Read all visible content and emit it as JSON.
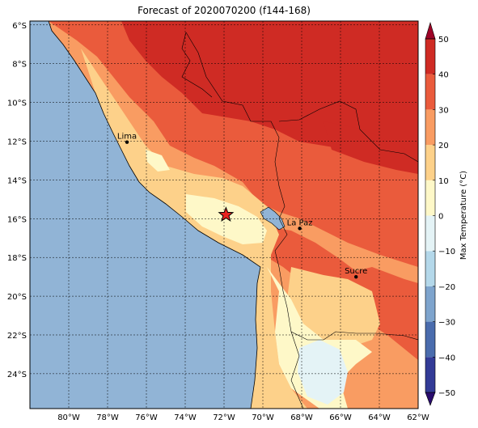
{
  "title": "Forecast of 2020070200 (f144-168)",
  "map": {
    "lon_ticks": [
      "80°W",
      "78°W",
      "76°W",
      "74°W",
      "72°W",
      "70°W",
      "68°W",
      "66°W",
      "64°W",
      "62°W"
    ],
    "lat_ticks": [
      "6°S",
      "8°S",
      "10°S",
      "12°S",
      "14°S",
      "16°S",
      "18°S",
      "20°S",
      "22°S",
      "24°S"
    ],
    "grid": true,
    "ocean_color": "#91b4d6",
    "cities": [
      {
        "name": "Lima",
        "lon": -77.0,
        "lat": -12.05
      },
      {
        "name": "La Paz",
        "lon": -68.1,
        "lat": -16.5
      },
      {
        "name": "Sucre",
        "lon": -65.2,
        "lat": -19.0
      }
    ],
    "marker": {
      "icon": "red-star-icon",
      "color": "#e8231f",
      "lon": -71.9,
      "lat": -15.8
    }
  },
  "colorbar": {
    "label": "Max Temperature (°C)",
    "ticks": [
      "50",
      "40",
      "30",
      "20",
      "10",
      "0",
      "−10",
      "−20",
      "−30",
      "−40",
      "−50"
    ],
    "colors": [
      "#2a0c6e",
      "#333b97",
      "#4a6cad",
      "#7ea4cd",
      "#b4d8ea",
      "#e4f3f6",
      "#fef8c8",
      "#fdd18a",
      "#f99c62",
      "#ea5b3c",
      "#cf2b24",
      "#9e0427"
    ],
    "extend": "both"
  }
}
